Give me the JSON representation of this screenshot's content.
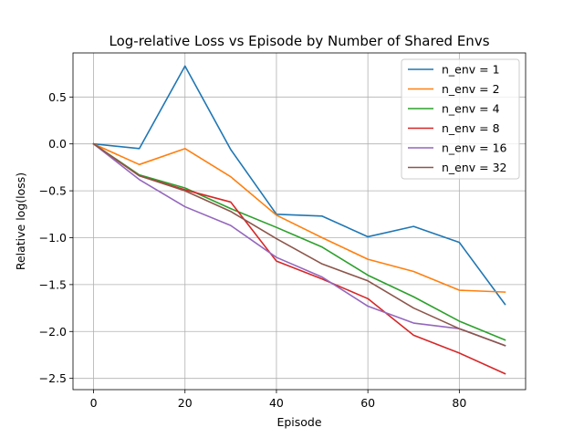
{
  "chart_data": {
    "type": "line",
    "title": "Log-relative Loss vs Episode by Number of Shared Envs",
    "xlabel": "Episode",
    "ylabel": "Relative log(loss)",
    "xlim": [
      -4.5,
      94.5
    ],
    "ylim": [
      -2.62,
      0.97
    ],
    "xticks": [
      0,
      20,
      40,
      60,
      80
    ],
    "xtick_labels": [
      "0",
      "20",
      "40",
      "60",
      "80"
    ],
    "yticks": [
      -2.5,
      -2.0,
      -1.5,
      -1.0,
      -0.5,
      0.0,
      0.5
    ],
    "ytick_labels": [
      "−2.5",
      "−2.0",
      "−1.5",
      "−1.0",
      "−0.5",
      "0.0",
      "0.5"
    ],
    "grid": true,
    "legend_position": "top-right",
    "x": [
      0,
      10,
      20,
      30,
      40,
      50,
      60,
      70,
      80,
      90
    ],
    "series": [
      {
        "name": "n_env = 1",
        "color": "#1f77b4",
        "values": [
          0.0,
          -0.05,
          0.83,
          -0.06,
          -0.75,
          -0.77,
          -0.99,
          -0.88,
          -1.05,
          -1.71
        ]
      },
      {
        "name": "n_env = 2",
        "color": "#ff7f0e",
        "values": [
          0.0,
          -0.22,
          -0.05,
          -0.35,
          -0.76,
          -1.0,
          -1.23,
          -1.36,
          -1.56,
          -1.58
        ]
      },
      {
        "name": "n_env = 4",
        "color": "#2ca02c",
        "values": [
          0.0,
          -0.33,
          -0.47,
          -0.69,
          -0.89,
          -1.1,
          -1.4,
          -1.63,
          -1.89,
          -2.09
        ]
      },
      {
        "name": "n_env = 8",
        "color": "#d62728",
        "values": [
          0.0,
          -0.34,
          -0.49,
          -0.62,
          -1.25,
          -1.44,
          -1.65,
          -2.04,
          -2.23,
          -2.45
        ]
      },
      {
        "name": "n_env = 16",
        "color": "#9467bd",
        "values": [
          0.0,
          -0.38,
          -0.67,
          -0.87,
          -1.21,
          -1.42,
          -1.73,
          -1.91,
          -1.97,
          -2.15
        ]
      },
      {
        "name": "n_env = 32",
        "color": "#8c564b",
        "values": [
          0.0,
          -0.34,
          -0.5,
          -0.72,
          -1.01,
          -1.28,
          -1.46,
          -1.75,
          -1.97,
          -2.15
        ]
      }
    ]
  }
}
